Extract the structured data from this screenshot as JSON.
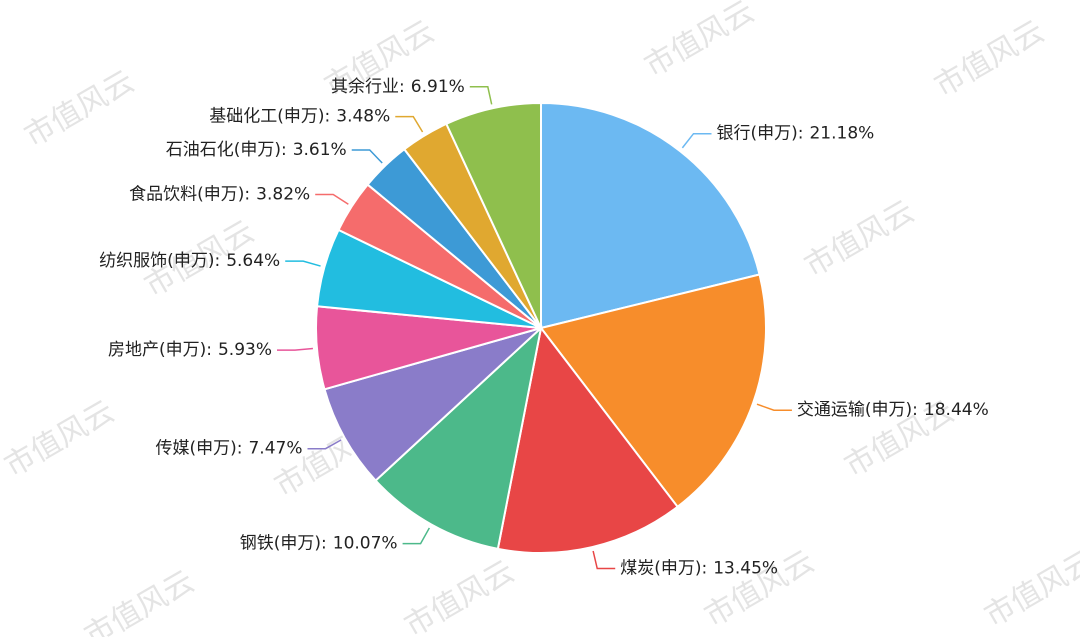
{
  "chart_data": {
    "type": "pie",
    "categories": [
      "银行(申万):",
      "交通运输(申万):",
      "煤炭(申万):",
      "钢铁(申万):",
      "传媒(申万):",
      "房地产(申万):",
      "纺织服饰(申万):",
      "食品饮料(申万):",
      "石油石化(申万):",
      "基础化工(申万):",
      "其余行业:"
    ],
    "values": [
      21.18,
      18.44,
      13.45,
      10.07,
      7.47,
      5.93,
      5.64,
      3.82,
      3.61,
      3.48,
      6.91
    ],
    "value_labels": [
      "21.18%",
      "18.44%",
      "13.45%",
      "10.07%",
      "7.47%",
      "5.93%",
      "5.64%",
      "3.82%",
      "3.61%",
      "3.48%",
      "6.91%"
    ],
    "colors": [
      "#6cb9f2",
      "#f78d2b",
      "#e84646",
      "#4cb98a",
      "#8a7cc9",
      "#e8559a",
      "#22bde0",
      "#f56c6c",
      "#3d9ad6",
      "#e0a830",
      "#8fbf4d"
    ],
    "watermark": "市值风云"
  }
}
